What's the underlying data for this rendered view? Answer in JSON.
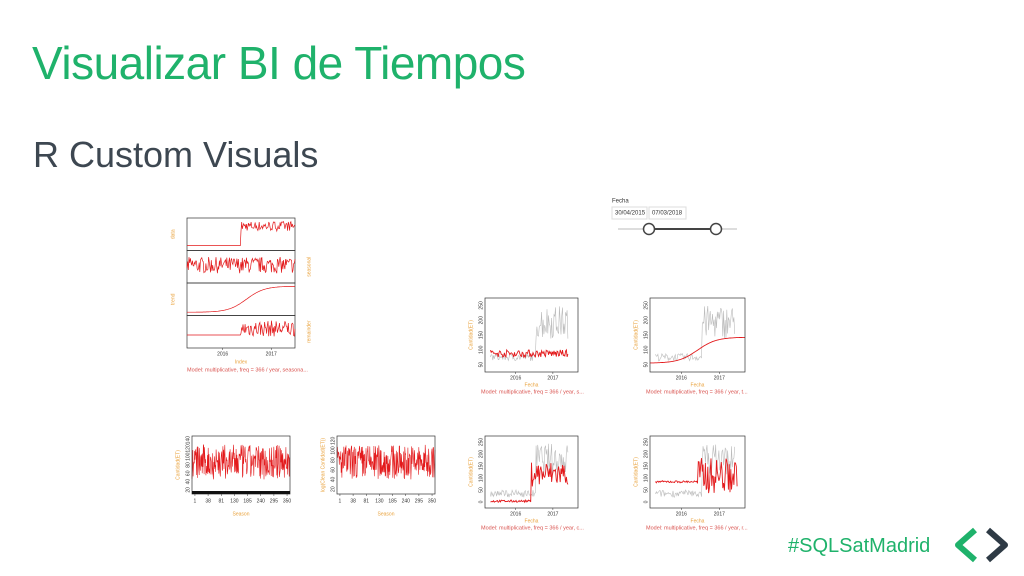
{
  "header": {
    "title": "Visualizar BI de Tiempos",
    "subtitle": "R Custom Visuals"
  },
  "slicer": {
    "label": "Fecha",
    "start": "30/04/2015",
    "end": "07/03/2018"
  },
  "decomposition": {
    "panels": [
      "data",
      "seasonal",
      "trend",
      "remainder"
    ],
    "x_label": "Index",
    "x_ticks": [
      "2016",
      "2017"
    ],
    "caption": "Model: multiplicative, freq = 366 / year, seasona..."
  },
  "forecasts": [
    {
      "y_label": "Cantidad(ET)",
      "x_label": "Fecha",
      "x_ticks": [
        "2016",
        "2017"
      ],
      "y_ticks": [
        50,
        100,
        150,
        200,
        250
      ],
      "caption": "Model: multiplicative, freq = 366 / year, s..."
    },
    {
      "y_label": "Cantidad(ET)",
      "x_label": "Fecha",
      "x_ticks": [
        "2016",
        "2017"
      ],
      "y_ticks": [
        50,
        100,
        150,
        200,
        250
      ],
      "caption": "Model: multiplicative, freq = 366 / year, t..."
    },
    {
      "y_label": "Cantidad(ET)",
      "x_label": "Fecha",
      "x_ticks": [
        "2016",
        "2017"
      ],
      "y_ticks": [
        0,
        50,
        100,
        150,
        200,
        250
      ],
      "caption": "Model: multiplicative, freq = 366 / year, c..."
    },
    {
      "y_label": "Cantidad(ET)",
      "x_label": "Fecha",
      "x_ticks": [
        "2016",
        "2017"
      ],
      "y_ticks": [
        0,
        50,
        100,
        150,
        200,
        250
      ],
      "caption": "Model: multiplicative, freq = 366 / year, r..."
    }
  ],
  "seasonals": [
    {
      "y_label": "Cantidad(ET)",
      "x_label": "Season",
      "x_ticks": [
        1,
        38,
        81,
        130,
        185,
        240,
        295,
        350
      ],
      "y_ticks": [
        20,
        40,
        60,
        80,
        100,
        120,
        140
      ]
    },
    {
      "y_label": "log(Clean Cantidad(ET))",
      "x_label": "Season",
      "x_ticks": [
        1,
        38,
        81,
        130,
        185,
        240,
        295,
        350
      ],
      "y_ticks": [
        20,
        40,
        60,
        80,
        100,
        120
      ]
    }
  ],
  "footer": {
    "hashtag": "#SQLSatMadrid"
  }
}
